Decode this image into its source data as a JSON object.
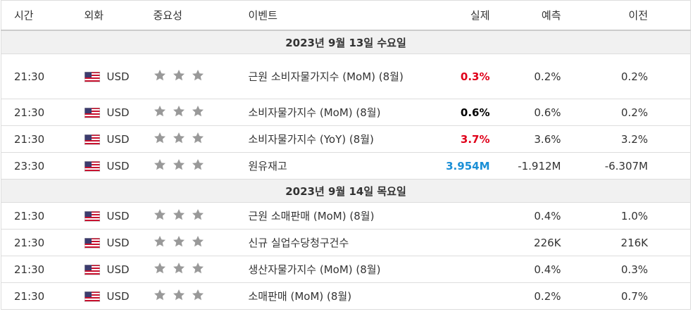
{
  "header": {
    "columns": [
      "시간",
      "외화",
      "중요성",
      "이벤트",
      "실제",
      "예측",
      "이전"
    ]
  },
  "groups": [
    {
      "date": "2023년 9월 13일 수요일",
      "rows": [
        {
          "time": "21:30",
          "currency": "USD",
          "event": "근원 소비자물가지수 (MoM) (8월)",
          "actual": "0.3%",
          "actual_color": "#e0001a",
          "forecast": "0.2%",
          "previous": "0.2%"
        },
        {
          "time": "21:30",
          "currency": "USD",
          "event": "소비자물가지수 (MoM) (8월)",
          "actual": "0.6%",
          "actual_color": "#000000",
          "forecast": "0.6%",
          "previous": "0.2%"
        },
        {
          "time": "21:30",
          "currency": "USD",
          "event": "소비자물가지수 (YoY) (8월)",
          "actual": "3.7%",
          "actual_color": "#e0001a",
          "forecast": "3.6%",
          "previous": "3.2%"
        },
        {
          "time": "23:30",
          "currency": "USD",
          "event": "원유재고",
          "actual": "3.954M",
          "actual_color": "#1a8fd6",
          "forecast": "-1.912M",
          "previous": "-6.307M"
        }
      ]
    },
    {
      "date": "2023년 9월 14일 목요일",
      "rows": [
        {
          "time": "21:30",
          "currency": "USD",
          "event": "근원 소매판매 (MoM) (8월)",
          "actual": null,
          "actual_color": null,
          "forecast": "0.4%",
          "previous": "1.0%"
        },
        {
          "time": "21:30",
          "currency": "USD",
          "event": "신규 실업수당청구건수",
          "actual": null,
          "actual_color": null,
          "forecast": "226K",
          "previous": "216K"
        },
        {
          "time": "21:30",
          "currency": "USD",
          "event": "생산자물가지수 (MoM) (8월)",
          "actual": null,
          "actual_color": null,
          "forecast": "0.4%",
          "previous": "0.3%"
        },
        {
          "time": "21:30",
          "currency": "USD",
          "event": "소매판매 (MoM) (8월)",
          "actual": null,
          "actual_color": null,
          "forecast": "0.2%",
          "previous": "0.7%"
        }
      ]
    }
  ]
}
